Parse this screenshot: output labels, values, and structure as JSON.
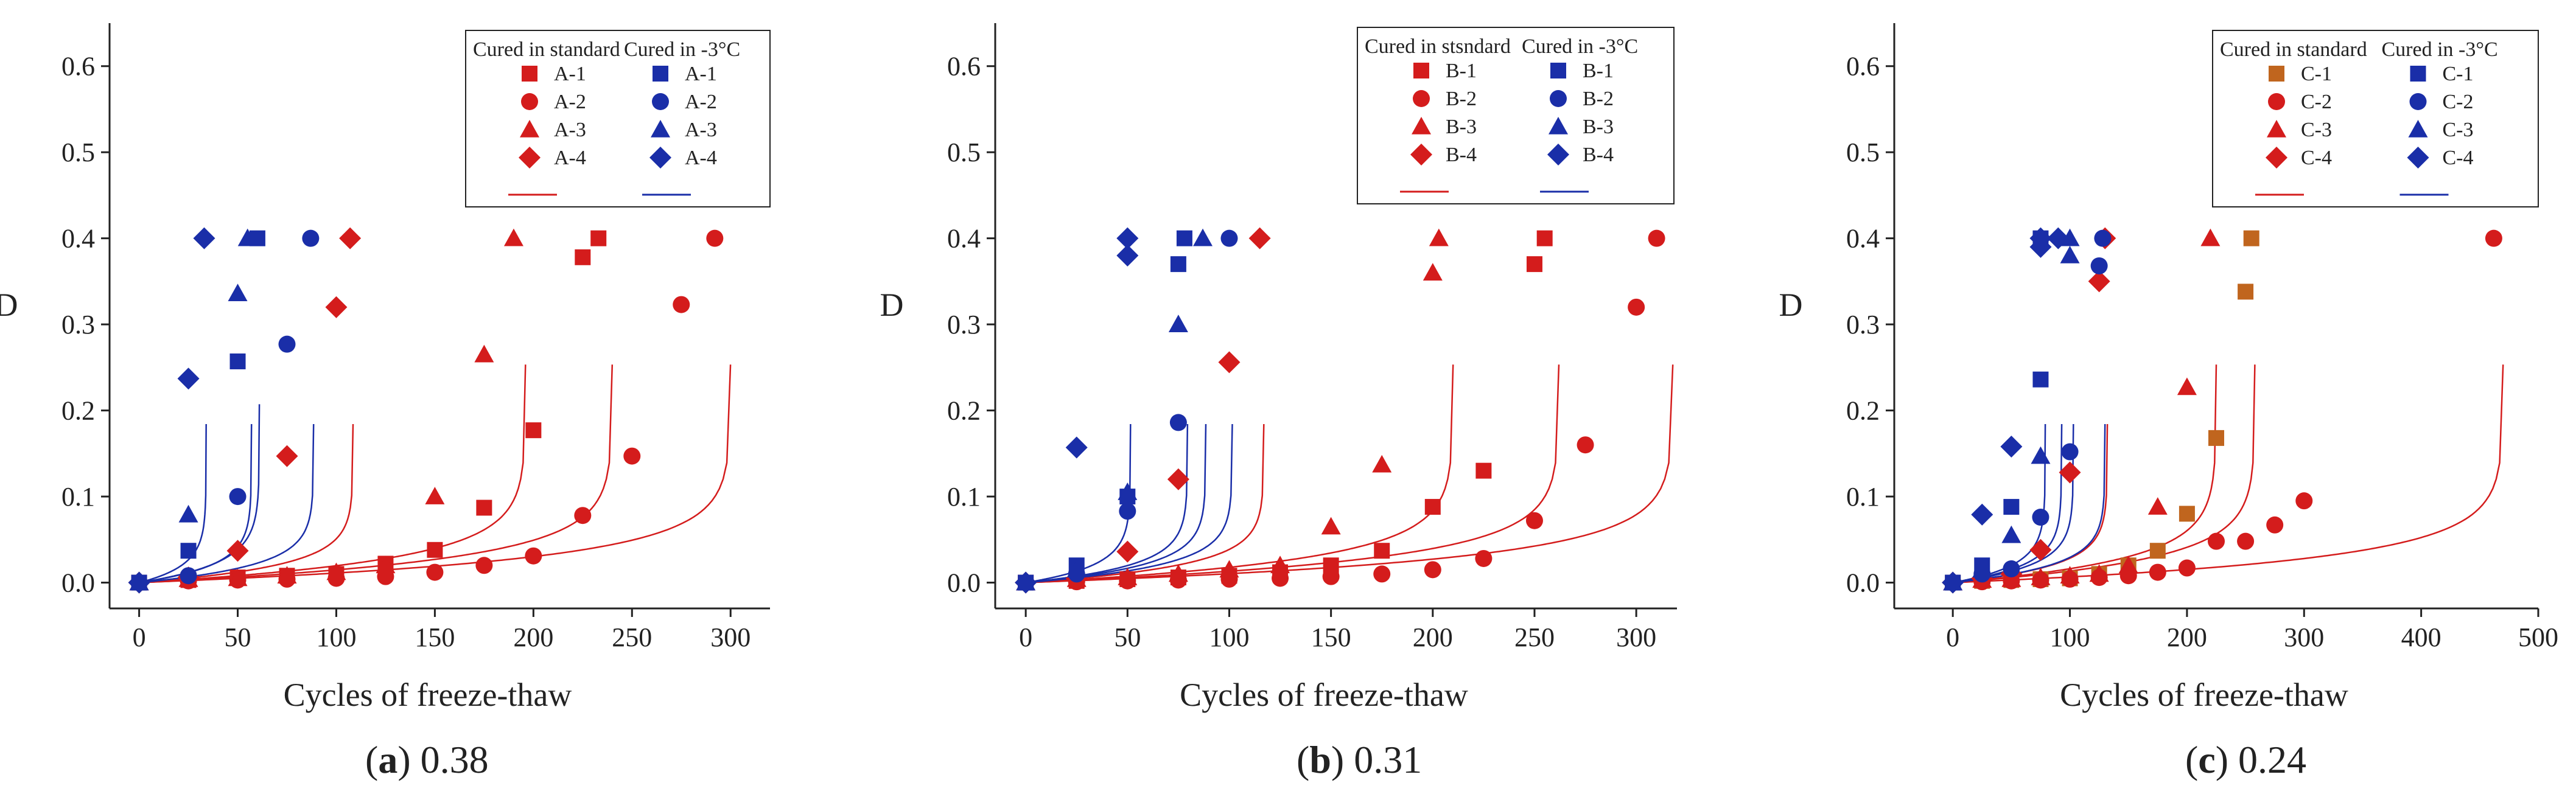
{
  "colors": {
    "standard": "#d41c1c",
    "cold": "#1a2ea8",
    "standard_alt": "#c0651e",
    "axis": "#222222"
  },
  "chart_data": [
    {
      "type": "scatter",
      "caption_letter": "a",
      "caption_value": "0.38",
      "xlabel": "Cycles of freeze-thaw",
      "ylabel": "D",
      "xlim": [
        -15,
        320
      ],
      "ylim": [
        -0.03,
        0.65
      ],
      "xticks": [
        0,
        50,
        100,
        150,
        200,
        250,
        300
      ],
      "yticks": [
        0.0,
        0.1,
        0.2,
        0.3,
        0.4,
        0.5,
        0.6
      ],
      "legend": {
        "headers": [
          "Cured in standard",
          "Cured in -3°C"
        ],
        "std_labels": [
          "A-1",
          "A-2",
          "A-3",
          "A-4"
        ],
        "cold_labels": [
          "A-1",
          "A-2",
          "A-3",
          "A-4"
        ],
        "placement": "top-right"
      },
      "series": [
        {
          "name": "A-1",
          "group": "standard",
          "marker": "square",
          "color": "#d41c1c",
          "x": [
            0,
            25,
            50,
            75,
            100,
            125,
            150,
            175,
            200,
            225,
            233
          ],
          "y": [
            0,
            0.003,
            0.006,
            0.008,
            0.01,
            0.022,
            0.038,
            0.087,
            0.177,
            0.378,
            0.4
          ],
          "fit": {
            "a": 0.0275,
            "N": 240
          }
        },
        {
          "name": "A-2",
          "group": "standard",
          "marker": "circle",
          "color": "#d41c1c",
          "x": [
            0,
            25,
            50,
            75,
            100,
            125,
            150,
            175,
            200,
            225,
            250,
            275,
            292
          ],
          "y": [
            0,
            0.002,
            0.003,
            0.004,
            0.005,
            0.007,
            0.012,
            0.02,
            0.031,
            0.078,
            0.147,
            0.323,
            0.4
          ],
          "fit": {
            "a": 0.0275,
            "N": 300
          }
        },
        {
          "name": "A-3",
          "group": "standard",
          "marker": "triangle",
          "color": "#d41c1c",
          "x": [
            0,
            25,
            50,
            75,
            100,
            125,
            150,
            175,
            190
          ],
          "y": [
            0,
            0.004,
            0.005,
            0.008,
            0.012,
            0.02,
            0.1,
            0.265,
            0.4
          ],
          "fit": {
            "a": 0.0275,
            "N": 196
          }
        },
        {
          "name": "A-4",
          "group": "standard",
          "marker": "diamond",
          "color": "#d41c1c",
          "x": [
            0,
            25,
            50,
            75,
            100,
            107
          ],
          "y": [
            0,
            0.006,
            0.037,
            0.147,
            0.32,
            0.4
          ],
          "fit": {
            "a": 0.02,
            "N": 108.5
          }
        },
        {
          "name": "A-1",
          "group": "cold",
          "marker": "square",
          "color": "#1a2ea8",
          "x": [
            0,
            25,
            50,
            60
          ],
          "y": [
            0,
            0.037,
            0.257,
            0.4
          ],
          "fit": {
            "a": 0.0225,
            "N": 61
          }
        },
        {
          "name": "A-2",
          "group": "cold",
          "marker": "circle",
          "color": "#1a2ea8",
          "x": [
            0,
            25,
            50,
            75,
            87
          ],
          "y": [
            0,
            0.008,
            0.1,
            0.277,
            0.4
          ],
          "fit": {
            "a": 0.02,
            "N": 88.5
          }
        },
        {
          "name": "A-3",
          "group": "cold",
          "marker": "triangle",
          "color": "#1a2ea8",
          "x": [
            0,
            25,
            50,
            55
          ],
          "y": [
            0,
            0.079,
            0.336,
            0.4
          ],
          "fit": {
            "a": 0.02,
            "N": 57
          }
        },
        {
          "name": "A-4",
          "group": "cold",
          "marker": "diamond",
          "color": "#1a2ea8",
          "x": [
            0,
            25,
            33
          ],
          "y": [
            0,
            0.237,
            0.4
          ],
          "fit": {
            "a": 0.02,
            "N": 34
          }
        }
      ]
    },
    {
      "type": "scatter",
      "caption_letter": "b",
      "caption_value": "0.31",
      "xlabel": "Cycles of freeze-thaw",
      "ylabel": "D",
      "xlim": [
        -15,
        320
      ],
      "ylim": [
        -0.03,
        0.65
      ],
      "xticks": [
        0,
        50,
        100,
        150,
        200,
        250,
        300
      ],
      "yticks": [
        0.0,
        0.1,
        0.2,
        0.3,
        0.4,
        0.5,
        0.6
      ],
      "legend": {
        "headers": [
          "Cured in stsndard",
          "Cured in -3°C"
        ],
        "std_labels": [
          "B-1",
          "B-2",
          "B-3",
          "B-4"
        ],
        "cold_labels": [
          "B-1",
          "B-2",
          "B-3",
          "B-4"
        ],
        "placement": "top-right"
      },
      "series": [
        {
          "name": "B-1",
          "group": "standard",
          "marker": "square",
          "color": "#d41c1c",
          "x": [
            0,
            25,
            50,
            75,
            100,
            125,
            150,
            175,
            200,
            225,
            250,
            255
          ],
          "y": [
            0,
            0.002,
            0.004,
            0.006,
            0.008,
            0.012,
            0.02,
            0.037,
            0.088,
            0.13,
            0.37,
            0.4
          ],
          "fit": {
            "a": 0.0275,
            "N": 262
          }
        },
        {
          "name": "B-2",
          "group": "standard",
          "marker": "circle",
          "color": "#d41c1c",
          "x": [
            0,
            25,
            50,
            75,
            100,
            125,
            150,
            175,
            200,
            225,
            250,
            275,
            300,
            310
          ],
          "y": [
            0,
            0.001,
            0.002,
            0.003,
            0.004,
            0.005,
            0.007,
            0.01,
            0.015,
            0.028,
            0.072,
            0.16,
            0.32,
            0.4
          ],
          "fit": {
            "a": 0.0275,
            "N": 318
          }
        },
        {
          "name": "B-3",
          "group": "standard",
          "marker": "triangle",
          "color": "#d41c1c",
          "x": [
            0,
            25,
            50,
            75,
            100,
            125,
            150,
            175,
            200,
            203
          ],
          "y": [
            0,
            0.004,
            0.006,
            0.01,
            0.015,
            0.02,
            0.065,
            0.137,
            0.36,
            0.4
          ],
          "fit": {
            "a": 0.0275,
            "N": 210
          }
        },
        {
          "name": "B-4",
          "group": "standard",
          "marker": "diamond",
          "color": "#d41c1c",
          "x": [
            0,
            25,
            50,
            75,
            100,
            115
          ],
          "y": [
            0,
            0.005,
            0.036,
            0.12,
            0.256,
            0.4
          ],
          "fit": {
            "a": 0.02,
            "N": 117
          }
        },
        {
          "name": "B-1",
          "group": "cold",
          "marker": "square",
          "color": "#1a2ea8",
          "x": [
            0,
            25,
            50,
            75,
            78
          ],
          "y": [
            0,
            0.02,
            0.1,
            0.37,
            0.4
          ],
          "fit": {
            "a": 0.02,
            "N": 79.5
          }
        },
        {
          "name": "B-2",
          "group": "cold",
          "marker": "circle",
          "color": "#1a2ea8",
          "x": [
            0,
            25,
            50,
            75,
            100
          ],
          "y": [
            0,
            0.01,
            0.083,
            0.186,
            0.4
          ],
          "fit": {
            "a": 0.02,
            "N": 101.5
          }
        },
        {
          "name": "B-3",
          "group": "cold",
          "marker": "triangle",
          "color": "#1a2ea8",
          "x": [
            0,
            25,
            50,
            75,
            87
          ],
          "y": [
            0,
            0.015,
            0.105,
            0.3,
            0.4
          ],
          "fit": {
            "a": 0.02,
            "N": 88.5
          }
        },
        {
          "name": "B-4",
          "group": "cold",
          "marker": "diamond",
          "color": "#1a2ea8",
          "x": [
            0,
            25,
            50,
            50
          ],
          "y": [
            0,
            0.157,
            0.38,
            0.4
          ],
          "fit": {
            "a": 0.02,
            "N": 51.5
          }
        }
      ]
    },
    {
      "type": "scatter",
      "caption_letter": "c",
      "caption_value": "0.24",
      "xlabel": "Cycles of freeze-thaw",
      "ylabel": "D",
      "xlim": [
        -50,
        500
      ],
      "ylim": [
        -0.03,
        0.65
      ],
      "xticks": [
        0,
        100,
        200,
        300,
        400,
        500
      ],
      "yticks": [
        0.0,
        0.1,
        0.2,
        0.3,
        0.4,
        0.5,
        0.6
      ],
      "legend": {
        "headers": [
          "Cured in standard",
          "Cured in -3°C"
        ],
        "std_labels": [
          "C-1",
          "C-2",
          "C-3",
          "C-4"
        ],
        "cold_labels": [
          "C-1",
          "C-2",
          "C-3",
          "C-4"
        ],
        "placement": "top-right"
      },
      "series": [
        {
          "name": "C-1",
          "group": "standard",
          "marker": "square",
          "color": "#c0651e",
          "x": [
            0,
            25,
            50,
            75,
            100,
            125,
            150,
            175,
            200,
            225,
            250,
            255
          ],
          "y": [
            0,
            0.002,
            0.003,
            0.004,
            0.005,
            0.01,
            0.02,
            0.037,
            0.08,
            0.168,
            0.338,
            0.4
          ],
          "fit": {
            "a": 0.0275,
            "N": 258
          }
        },
        {
          "name": "C-2",
          "group": "standard",
          "marker": "circle",
          "color": "#d41c1c",
          "x": [
            0,
            25,
            50,
            75,
            100,
            125,
            150,
            175,
            200,
            225,
            250,
            275,
            300,
            462
          ],
          "y": [
            0,
            0.001,
            0.002,
            0.003,
            0.004,
            0.006,
            0.008,
            0.012,
            0.017,
            0.048,
            0.048,
            0.067,
            0.095,
            0.4
          ],
          "fit": {
            "a": 0.0275,
            "N": 470
          }
        },
        {
          "name": "C-3",
          "group": "standard",
          "marker": "triangle",
          "color": "#d41c1c",
          "x": [
            0,
            25,
            50,
            75,
            100,
            125,
            150,
            175,
            200,
            220
          ],
          "y": [
            0,
            0.003,
            0.004,
            0.006,
            0.008,
            0.01,
            0.02,
            0.088,
            0.227,
            0.4
          ],
          "fit": {
            "a": 0.0275,
            "N": 225
          }
        },
        {
          "name": "C-4",
          "group": "standard",
          "marker": "diamond",
          "color": "#d41c1c",
          "x": [
            0,
            25,
            50,
            75,
            100,
            125,
            130
          ],
          "y": [
            0,
            0.005,
            0.01,
            0.038,
            0.128,
            0.35,
            0.4
          ],
          "fit": {
            "a": 0.02,
            "N": 132
          }
        },
        {
          "name": "C-1",
          "group": "cold",
          "marker": "square",
          "color": "#1a2ea8",
          "x": [
            0,
            25,
            50,
            75,
            75
          ],
          "y": [
            0,
            0.02,
            0.088,
            0.236,
            0.4
          ],
          "fit": {
            "a": 0.02,
            "N": 79
          }
        },
        {
          "name": "C-2",
          "group": "cold",
          "marker": "circle",
          "color": "#1a2ea8",
          "x": [
            0,
            25,
            50,
            75,
            100,
            125,
            128
          ],
          "y": [
            0,
            0.01,
            0.016,
            0.076,
            0.152,
            0.368,
            0.4
          ],
          "fit": {
            "a": 0.02,
            "N": 130
          }
        },
        {
          "name": "C-3",
          "group": "cold",
          "marker": "triangle",
          "color": "#1a2ea8",
          "x": [
            0,
            25,
            50,
            75,
            100,
            100
          ],
          "y": [
            0,
            0.015,
            0.055,
            0.147,
            0.38,
            0.4
          ],
          "fit": {
            "a": 0.02,
            "N": 103
          }
        },
        {
          "name": "C-4",
          "group": "cold",
          "marker": "diamond",
          "color": "#1a2ea8",
          "x": [
            0,
            25,
            50,
            75,
            75,
            90
          ],
          "y": [
            0,
            0.079,
            0.158,
            0.39,
            0.4,
            0.4
          ],
          "fit": {
            "a": 0.02,
            "N": 93
          }
        }
      ]
    }
  ]
}
